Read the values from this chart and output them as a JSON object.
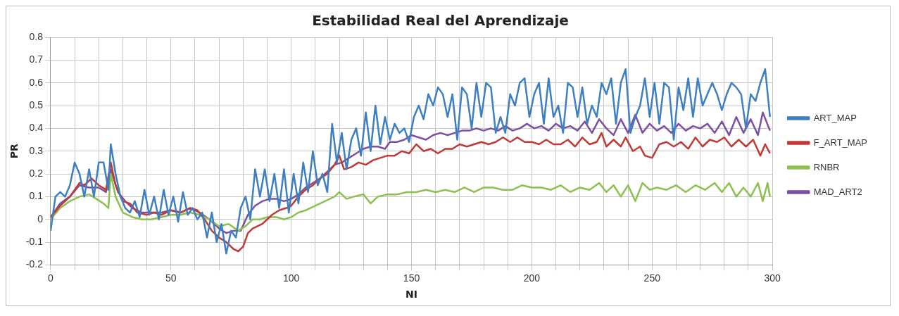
{
  "chart_data": {
    "type": "line",
    "title": "Estabilidad Real del Aprendizaje",
    "xlabel": "NI",
    "ylabel": "PR",
    "xlim": [
      0,
      300
    ],
    "ylim": [
      -0.2,
      0.8
    ],
    "xticks": [
      0,
      {
        "value": 10,
        "label": null
      },
      {
        "value": 20,
        "label": null
      },
      {
        "value": 30,
        "label": null
      },
      {
        "value": 40,
        "label": null
      },
      50,
      {
        "value": 60,
        "label": null
      },
      {
        "value": 70,
        "label": null
      },
      {
        "value": 80,
        "label": null
      },
      {
        "value": 90,
        "label": null
      },
      100,
      {
        "value": 110,
        "label": null
      },
      {
        "value": 120,
        "label": null
      },
      {
        "value": 130,
        "label": null
      },
      {
        "value": 140,
        "label": null
      },
      150,
      {
        "value": 160,
        "label": null
      },
      {
        "value": 170,
        "label": null
      },
      {
        "value": 180,
        "label": null
      },
      {
        "value": 190,
        "label": null
      },
      200,
      {
        "value": 210,
        "label": null
      },
      {
        "value": 220,
        "label": null
      },
      {
        "value": 230,
        "label": null
      },
      {
        "value": 240,
        "label": null
      },
      250,
      {
        "value": 260,
        "label": null
      },
      {
        "value": 270,
        "label": null
      },
      {
        "value": 280,
        "label": null
      },
      {
        "value": 290,
        "label": null
      },
      300
    ],
    "yticks": [
      -0.2,
      -0.1,
      0,
      0.1,
      0.2,
      0.3,
      0.4,
      0.5,
      0.6,
      0.7,
      0.8
    ],
    "grid": true,
    "legend": "right",
    "marker": "none",
    "line_style": "solid",
    "series": [
      {
        "name": "ART_MAP",
        "color": "#3d7fc1",
        "x": [
          0,
          2,
          4,
          6,
          8,
          10,
          12,
          14,
          16,
          18,
          20,
          22,
          24,
          25,
          27,
          29,
          31,
          33,
          35,
          37,
          39,
          41,
          43,
          45,
          47,
          49,
          51,
          53,
          55,
          57,
          59,
          61,
          63,
          65,
          67,
          69,
          71,
          73,
          75,
          77,
          79,
          81,
          83,
          85,
          87,
          89,
          91,
          93,
          95,
          97,
          99,
          101,
          103,
          105,
          107,
          109,
          111,
          113,
          115,
          117,
          119,
          121,
          123,
          125,
          127,
          129,
          131,
          133,
          135,
          137,
          139,
          141,
          143,
          145,
          147,
          149,
          151,
          153,
          155,
          157,
          159,
          161,
          163,
          165,
          167,
          169,
          171,
          173,
          175,
          177,
          179,
          181,
          183,
          185,
          187,
          189,
          191,
          193,
          195,
          197,
          199,
          201,
          203,
          205,
          207,
          209,
          211,
          213,
          215,
          217,
          219,
          221,
          223,
          225,
          227,
          229,
          231,
          233,
          235,
          237,
          239,
          241,
          243,
          245,
          247,
          249,
          251,
          253,
          255,
          257,
          259,
          261,
          263,
          265,
          267,
          269,
          271,
          273,
          275,
          277,
          279,
          281,
          283,
          285,
          287,
          289,
          291,
          293,
          295,
          297,
          299
        ],
        "values": [
          -0.05,
          0.1,
          0.12,
          0.1,
          0.15,
          0.25,
          0.2,
          0.1,
          0.22,
          0.1,
          0.25,
          0.25,
          0.13,
          0.33,
          0.2,
          0.1,
          0.05,
          0.03,
          0.08,
          0.01,
          0.13,
          0.02,
          0.1,
          0.0,
          0.13,
          0.02,
          0.1,
          -0.01,
          0.12,
          0.02,
          0.05,
          0.0,
          0.03,
          -0.08,
          0.03,
          -0.1,
          -0.02,
          -0.15,
          -0.05,
          -0.08,
          0.05,
          0.1,
          0.0,
          0.22,
          0.1,
          0.22,
          0.08,
          0.2,
          0.05,
          0.22,
          0.03,
          0.2,
          0.07,
          0.25,
          0.12,
          0.3,
          0.15,
          0.2,
          0.12,
          0.42,
          0.25,
          0.38,
          0.22,
          0.35,
          0.4,
          0.28,
          0.47,
          0.3,
          0.5,
          0.33,
          0.45,
          0.35,
          0.42,
          0.38,
          0.4,
          0.34,
          0.45,
          0.5,
          0.44,
          0.55,
          0.5,
          0.58,
          0.55,
          0.45,
          0.55,
          0.35,
          0.58,
          0.55,
          0.4,
          0.6,
          0.45,
          0.6,
          0.58,
          0.38,
          0.45,
          0.38,
          0.55,
          0.5,
          0.6,
          0.62,
          0.45,
          0.55,
          0.6,
          0.42,
          0.62,
          0.45,
          0.5,
          0.38,
          0.6,
          0.58,
          0.45,
          0.58,
          0.42,
          0.5,
          0.45,
          0.6,
          0.55,
          0.62,
          0.42,
          0.6,
          0.66,
          0.38,
          0.45,
          0.5,
          0.62,
          0.45,
          0.6,
          0.42,
          0.6,
          0.58,
          0.35,
          0.58,
          0.48,
          0.62,
          0.45,
          0.62,
          0.5,
          0.55,
          0.6,
          0.55,
          0.48,
          0.55,
          0.6,
          0.58,
          0.55,
          0.4,
          0.55,
          0.52,
          0.6,
          0.66,
          0.45
        ]
      },
      {
        "name": "F_ART_MAP",
        "color": "#be3b36",
        "x": [
          0,
          4,
          8,
          12,
          14,
          17,
          20,
          23,
          25,
          27,
          30,
          33,
          36,
          40,
          43,
          46,
          50,
          54,
          58,
          61,
          64,
          67,
          70,
          73,
          76,
          78,
          80,
          82,
          84,
          86,
          88,
          90,
          92,
          95,
          98,
          100,
          103,
          106,
          109,
          112,
          115,
          118,
          120,
          122,
          125,
          128,
          131,
          134,
          137,
          140,
          143,
          146,
          149,
          152,
          155,
          158,
          161,
          164,
          167,
          170,
          173,
          176,
          179,
          182,
          185,
          188,
          191,
          194,
          197,
          200,
          203,
          206,
          209,
          212,
          215,
          218,
          221,
          224,
          227,
          229,
          231,
          234,
          237,
          239,
          242,
          245,
          247,
          250,
          253,
          256,
          259,
          262,
          265,
          268,
          271,
          274,
          277,
          280,
          283,
          286,
          289,
          292,
          295,
          297,
          299
        ],
        "values": [
          0.01,
          0.06,
          0.1,
          0.16,
          0.15,
          0.18,
          0.15,
          0.13,
          0.25,
          0.15,
          0.08,
          0.07,
          0.03,
          0.02,
          0.03,
          0.02,
          0.04,
          0.03,
          0.05,
          0.04,
          0.0,
          -0.05,
          -0.08,
          -0.1,
          -0.13,
          -0.14,
          -0.12,
          -0.06,
          -0.04,
          -0.03,
          -0.02,
          0.0,
          0.02,
          0.04,
          0.05,
          0.06,
          0.1,
          0.13,
          0.15,
          0.18,
          0.2,
          0.24,
          0.28,
          0.22,
          0.23,
          0.25,
          0.24,
          0.26,
          0.27,
          0.28,
          0.28,
          0.3,
          0.29,
          0.33,
          0.3,
          0.31,
          0.29,
          0.31,
          0.31,
          0.33,
          0.32,
          0.33,
          0.34,
          0.33,
          0.34,
          0.36,
          0.34,
          0.36,
          0.34,
          0.34,
          0.33,
          0.35,
          0.33,
          0.33,
          0.35,
          0.32,
          0.36,
          0.33,
          0.34,
          0.38,
          0.32,
          0.35,
          0.32,
          0.36,
          0.3,
          0.32,
          0.28,
          0.27,
          0.33,
          0.34,
          0.32,
          0.34,
          0.31,
          0.36,
          0.32,
          0.35,
          0.34,
          0.36,
          0.32,
          0.35,
          0.32,
          0.35,
          0.28,
          0.33,
          0.29
        ]
      },
      {
        "name": "RNBR",
        "color": "#8cc04f",
        "x": [
          0,
          4,
          8,
          12,
          16,
          19,
          22,
          24,
          25,
          27,
          30,
          34,
          38,
          42,
          46,
          50,
          54,
          58,
          62,
          66,
          70,
          74,
          78,
          81,
          84,
          87,
          90,
          94,
          97,
          100,
          103,
          106,
          110,
          114,
          118,
          120,
          123,
          126,
          130,
          133,
          136,
          140,
          144,
          148,
          152,
          156,
          160,
          164,
          168,
          172,
          176,
          180,
          184,
          188,
          192,
          196,
          200,
          204,
          208,
          212,
          216,
          220,
          224,
          228,
          231,
          234,
          237,
          240,
          243,
          246,
          249,
          252,
          256,
          260,
          264,
          268,
          272,
          276,
          279,
          282,
          285,
          288,
          291,
          294,
          296,
          298,
          299
        ],
        "values": [
          0.0,
          0.05,
          0.08,
          0.1,
          0.11,
          0.09,
          0.07,
          0.05,
          0.2,
          0.1,
          0.03,
          0.01,
          0.0,
          0.0,
          0.01,
          0.02,
          0.02,
          0.03,
          0.02,
          0.0,
          -0.03,
          -0.02,
          -0.05,
          -0.03,
          0.0,
          0.0,
          0.01,
          0.01,
          0.0,
          0.01,
          0.03,
          0.04,
          0.06,
          0.08,
          0.1,
          0.12,
          0.09,
          0.1,
          0.11,
          0.07,
          0.1,
          0.11,
          0.11,
          0.12,
          0.12,
          0.13,
          0.12,
          0.13,
          0.12,
          0.14,
          0.12,
          0.14,
          0.14,
          0.13,
          0.13,
          0.15,
          0.14,
          0.14,
          0.13,
          0.15,
          0.12,
          0.14,
          0.13,
          0.16,
          0.12,
          0.15,
          0.1,
          0.15,
          0.08,
          0.16,
          0.13,
          0.14,
          0.13,
          0.15,
          0.12,
          0.15,
          0.13,
          0.16,
          0.12,
          0.16,
          0.1,
          0.14,
          0.1,
          0.16,
          0.08,
          0.16,
          0.1
        ]
      },
      {
        "name": "MAD_ART2",
        "color": "#7d4fa3",
        "x": [
          0,
          4,
          8,
          12,
          16,
          20,
          23,
          25,
          28,
          31,
          34,
          38,
          42,
          46,
          50,
          54,
          58,
          62,
          66,
          70,
          73,
          76,
          79,
          82,
          85,
          88,
          91,
          94,
          97,
          100,
          103,
          106,
          109,
          112,
          115,
          118,
          121,
          124,
          127,
          130,
          133,
          136,
          139,
          141,
          144,
          147,
          150,
          153,
          156,
          159,
          162,
          165,
          168,
          171,
          174,
          177,
          180,
          183,
          186,
          189,
          192,
          195,
          198,
          201,
          204,
          207,
          210,
          213,
          216,
          219,
          222,
          225,
          228,
          231,
          234,
          237,
          240,
          243,
          246,
          249,
          252,
          255,
          258,
          261,
          264,
          267,
          270,
          273,
          276,
          279,
          282,
          285,
          288,
          291,
          294,
          296,
          299
        ],
        "values": [
          0.01,
          0.07,
          0.1,
          0.15,
          0.14,
          0.14,
          0.12,
          0.22,
          0.12,
          0.08,
          0.05,
          0.03,
          0.03,
          0.03,
          0.04,
          0.03,
          0.05,
          0.03,
          0.0,
          -0.04,
          -0.06,
          -0.05,
          -0.05,
          0.02,
          0.06,
          0.08,
          0.09,
          0.09,
          0.08,
          0.09,
          0.11,
          0.14,
          0.16,
          0.18,
          0.21,
          0.24,
          0.25,
          0.27,
          0.29,
          0.31,
          0.32,
          0.32,
          0.31,
          0.34,
          0.34,
          0.35,
          0.37,
          0.36,
          0.35,
          0.37,
          0.38,
          0.37,
          0.38,
          0.39,
          0.39,
          0.4,
          0.39,
          0.4,
          0.39,
          0.41,
          0.39,
          0.4,
          0.42,
          0.4,
          0.41,
          0.39,
          0.42,
          0.4,
          0.41,
          0.39,
          0.43,
          0.38,
          0.44,
          0.4,
          0.37,
          0.44,
          0.38,
          0.46,
          0.38,
          0.42,
          0.39,
          0.41,
          0.38,
          0.42,
          0.39,
          0.41,
          0.4,
          0.42,
          0.38,
          0.43,
          0.37,
          0.45,
          0.38,
          0.44,
          0.37,
          0.47,
          0.39
        ]
      }
    ]
  }
}
